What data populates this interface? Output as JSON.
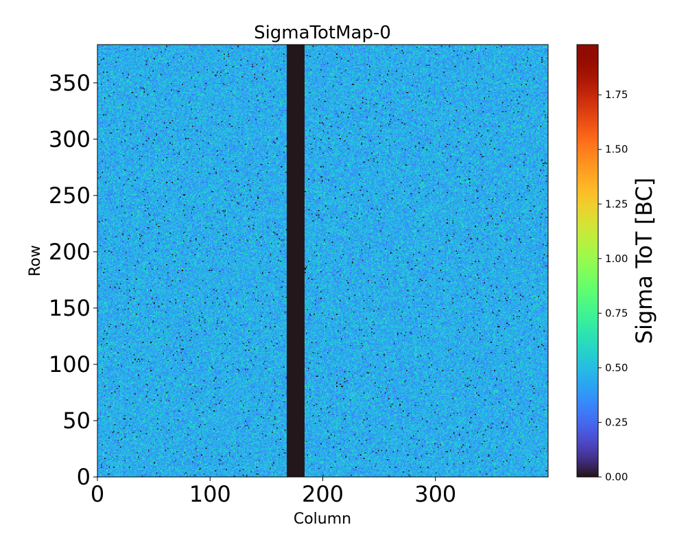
{
  "chart_data": {
    "type": "heatmap",
    "title": "SigmaTotMap-0",
    "xlabel": "Column",
    "ylabel": "Row",
    "colorbar_label": "Sigma ToT [BC]",
    "colormap": "turbo",
    "x_range": [
      0,
      400
    ],
    "y_range": [
      0,
      384
    ],
    "x_ticks": [
      0,
      100,
      200,
      300
    ],
    "x_tick_labels": [
      "0",
      "100",
      "200",
      "300"
    ],
    "y_ticks": [
      0,
      50,
      100,
      150,
      200,
      250,
      300,
      350
    ],
    "y_tick_labels": [
      "0",
      "50",
      "100",
      "150",
      "200",
      "250",
      "300",
      "350"
    ],
    "color_range": [
      0,
      1.98
    ],
    "colorbar_ticks": [
      0,
      0.25,
      0.5,
      0.75,
      1.0,
      1.25,
      1.5,
      1.75
    ],
    "colorbar_tick_labels": [
      "0.00",
      "0.25",
      "0.50",
      "0.75",
      "1.00",
      "1.25",
      "1.50",
      "1.75"
    ],
    "dead_column_band": {
      "col_start": 168,
      "col_end": 184,
      "value": 0.0
    },
    "typical_value": 0.45,
    "typical_spread": 0.08,
    "zero_pixel_fraction": 0.012,
    "grid": false
  }
}
